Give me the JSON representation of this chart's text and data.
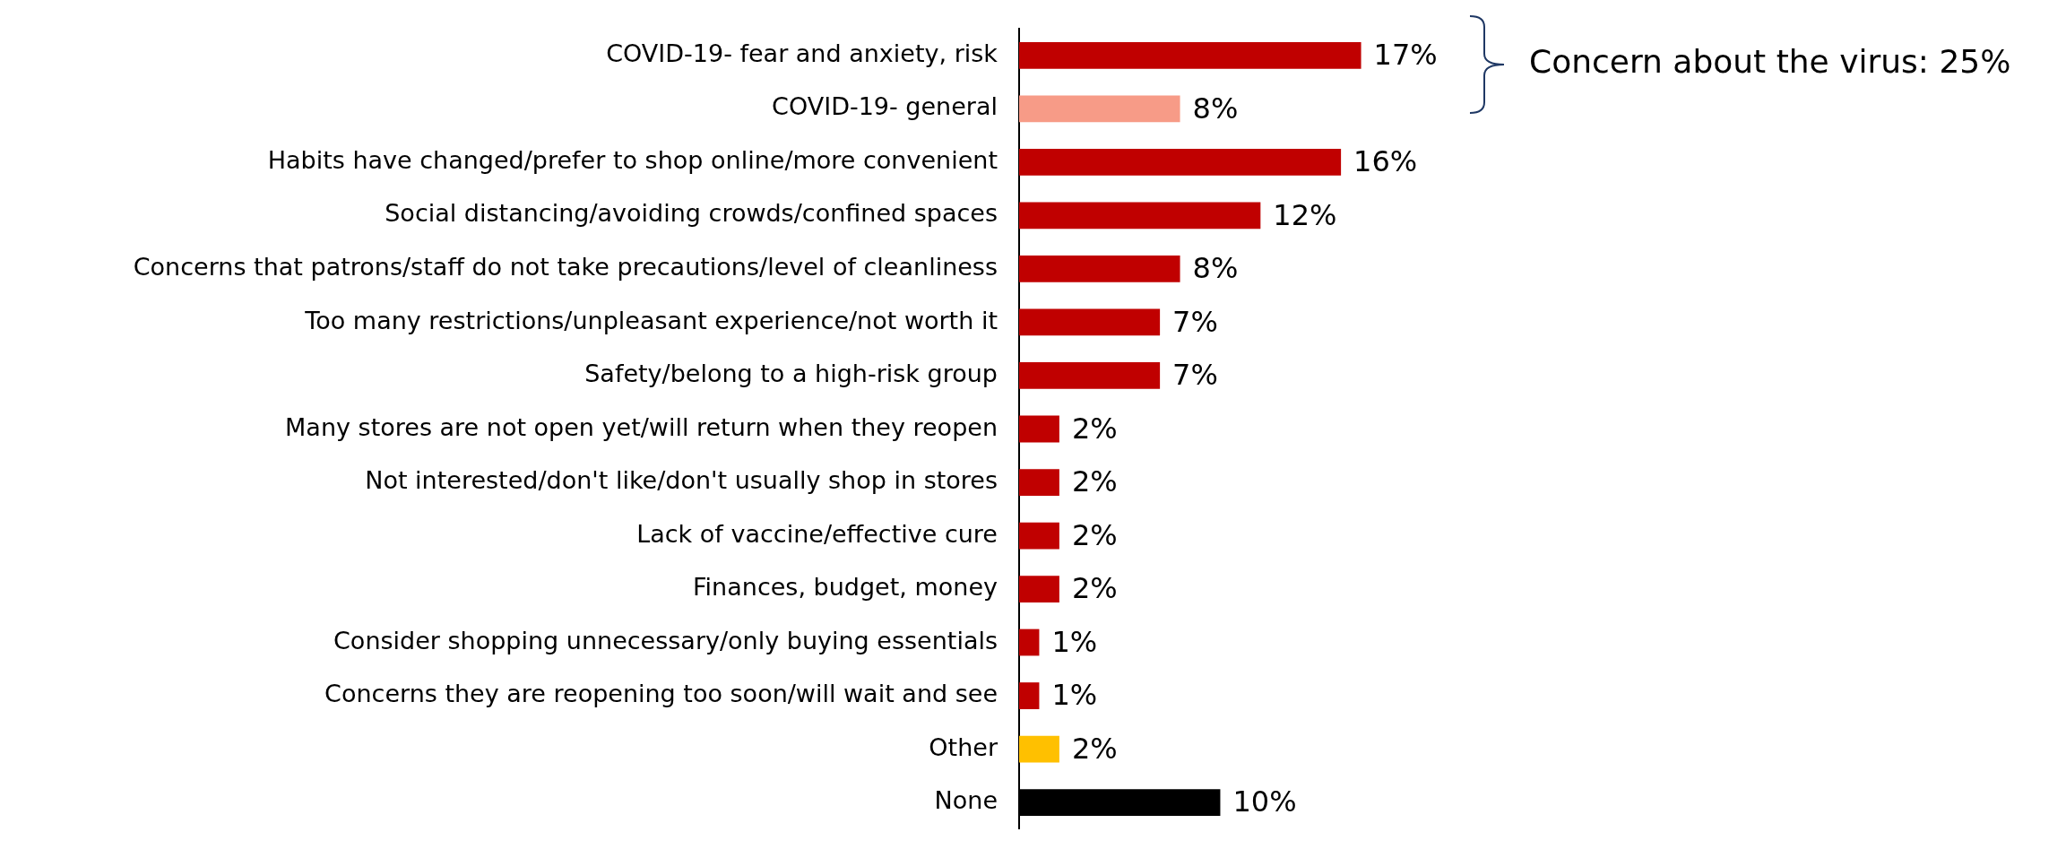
{
  "chart_data": {
    "type": "bar",
    "orientation": "horizontal",
    "categories": [
      "COVID-19- fear and anxiety, risk",
      "COVID-19- general",
      "Habits have changed/prefer to shop online/more convenient",
      "Social distancing/avoiding crowds/confined spaces",
      "Concerns that patrons/staff do not take precautions/level of cleanliness",
      "Too many restrictions/unpleasant experience/not worth it",
      "Safety/belong to a high-risk group",
      "Many stores are not open yet/will return when they reopen",
      "Not interested/don't like/don't usually shop in stores",
      "Lack of vaccine/effective cure",
      "Finances, budget, money",
      "Consider shopping unnecessary/only buying essentials",
      "Concerns they are reopening too soon/will wait and see",
      "Other",
      "None"
    ],
    "values": [
      17,
      8,
      16,
      12,
      8,
      7,
      7,
      2,
      2,
      2,
      2,
      1,
      1,
      2,
      10
    ],
    "colors": [
      "#c00000",
      "#f79b87",
      "#c00000",
      "#c00000",
      "#c00000",
      "#c00000",
      "#c00000",
      "#c00000",
      "#c00000",
      "#c00000",
      "#c00000",
      "#c00000",
      "#c00000",
      "#ffc000",
      "#000000"
    ],
    "value_labels": [
      "17%",
      "8%",
      "16%",
      "12%",
      "8%",
      "7%",
      "7%",
      "2%",
      "2%",
      "2%",
      "2%",
      "1%",
      "1%",
      "2%",
      "10%"
    ],
    "annotations": [
      "Concern about the virus: 25%"
    ],
    "legend": false
  }
}
